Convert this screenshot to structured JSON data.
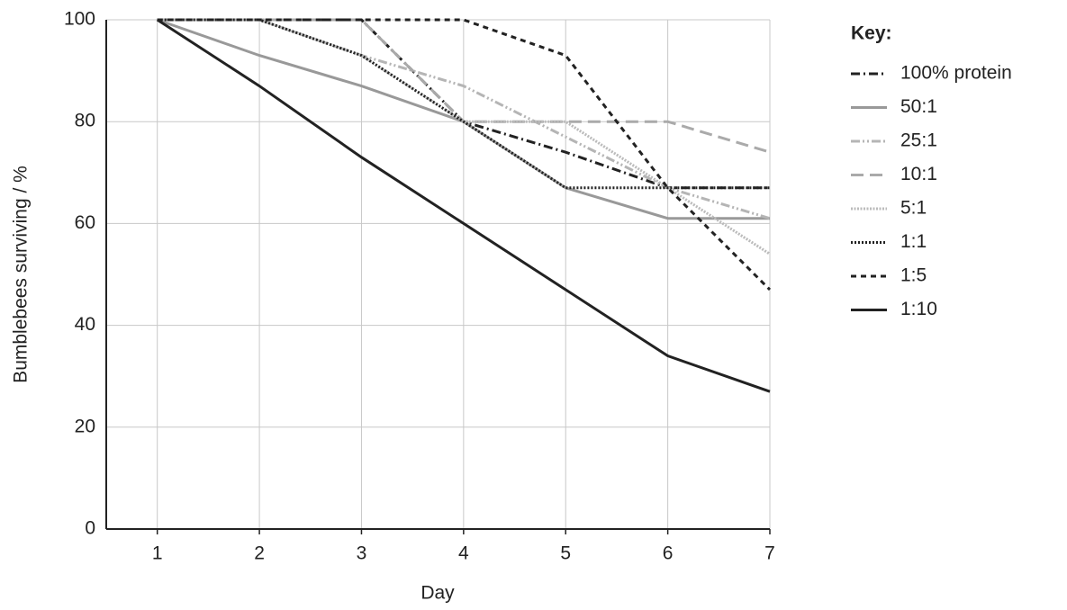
{
  "chart_data": {
    "type": "line",
    "x_label": "Day",
    "y_label": "Bumblebees surviving / %",
    "legend_title": "Key:",
    "legend_position": "right",
    "grid": true,
    "x": [
      1,
      2,
      3,
      4,
      5,
      6,
      7
    ],
    "xlim": [
      0.5,
      7
    ],
    "xticks": [
      1,
      2,
      3,
      4,
      5,
      6,
      7
    ],
    "ylim": [
      0,
      100
    ],
    "yticks": [
      0,
      20,
      40,
      60,
      80,
      100
    ],
    "series": [
      {
        "name": "100% protein",
        "color": "#222222",
        "dash": "10 4 2 4",
        "values": [
          100,
          100,
          100,
          80,
          74,
          67,
          67
        ]
      },
      {
        "name": "50:1",
        "color": "#999999",
        "dash": "none",
        "values": [
          100,
          93,
          87,
          80,
          67,
          61,
          61
        ]
      },
      {
        "name": "25:1",
        "color": "#b5b5b5",
        "dash": "10 3 2 3 2 3",
        "values": [
          100,
          100,
          93,
          87,
          77,
          67,
          61
        ]
      },
      {
        "name": "10:1",
        "color": "#aaaaaa",
        "dash": "14 7",
        "values": [
          100,
          100,
          100,
          80,
          80,
          80,
          74
        ]
      },
      {
        "name": "5:1",
        "color": "#bbbbbb",
        "dash": "2 1.5",
        "values": [
          100,
          100,
          93,
          80,
          80,
          67,
          54
        ]
      },
      {
        "name": "1:1",
        "color": "#222222",
        "dash": "2 2",
        "values": [
          100,
          100,
          93,
          80,
          67,
          67,
          67
        ]
      },
      {
        "name": "1:5",
        "color": "#222222",
        "dash": "6 5",
        "values": [
          100,
          100,
          100,
          100,
          93,
          67,
          47
        ]
      },
      {
        "name": "1:10",
        "color": "#222222",
        "dash": "none",
        "values": [
          100,
          87,
          73,
          60,
          47,
          34,
          27
        ]
      }
    ]
  }
}
